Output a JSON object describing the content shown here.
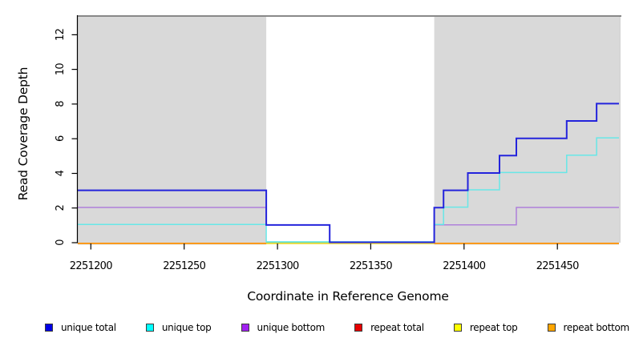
{
  "chart_data": {
    "type": "line",
    "style": "step-coverage-plot",
    "title": "",
    "xlabel": "Coordinate in Reference Genome",
    "ylabel": "Read Coverage Depth",
    "xlim": [
      2251193,
      2251483
    ],
    "ylim": [
      0,
      13.08
    ],
    "grid": false,
    "legend_position": "bottom",
    "x_tick_values": [
      2251200,
      2251250,
      2251300,
      2251350,
      2251400,
      2251450
    ],
    "x_ticks": [
      "2251200",
      "2251250",
      "2251300",
      "2251350",
      "2251400",
      "2251450"
    ],
    "y_tick_values": [
      0,
      2,
      4,
      6,
      8,
      10,
      12
    ],
    "y_ticks": [
      "0",
      "2",
      "4",
      "6",
      "8",
      "10",
      "12"
    ],
    "frame": {
      "top_line_color": "#787878",
      "right_edge_color": "#c4c4c4",
      "background": "#ffffff"
    },
    "shaded_regions": [
      {
        "x0": 2251193,
        "x1": 2251294,
        "color": "#d9d9d9"
      },
      {
        "x0": 2251384,
        "x1": 2251483,
        "color": "#d9d9d9"
      }
    ],
    "series": [
      {
        "name": "repeat total",
        "color": "#dd0000",
        "z": 1,
        "width": 1.3,
        "dy": 0.9,
        "opacity": 1,
        "steps": [
          [
            2251193,
            0
          ],
          [
            2251483,
            0
          ]
        ]
      },
      {
        "name": "repeat bottom",
        "color": "#ff9100",
        "z": 2,
        "width": 1.8,
        "dy": 0.9,
        "opacity": 1,
        "steps": [
          [
            2251193,
            0
          ],
          [
            2251483,
            0
          ]
        ]
      },
      {
        "name": "repeat top",
        "color": "#f2e53c",
        "z": 3,
        "width": 1.6,
        "dy": 0.9,
        "opacity": 1,
        "steps": [
          [
            2251294,
            0
          ],
          [
            2251384,
            0
          ]
        ]
      },
      {
        "name": "unique bottom",
        "color": "#ab79da",
        "z": 5,
        "width": 1.5,
        "dy": -0.7,
        "opacity": 0.92,
        "steps": [
          [
            2251193,
            2
          ],
          [
            2251294,
            1
          ],
          [
            2251328,
            0
          ],
          [
            2251384,
            1
          ],
          [
            2251428,
            2
          ],
          [
            2251483,
            2
          ]
        ]
      },
      {
        "name": "unique top",
        "color": "#58e8e8",
        "z": 6,
        "width": 1.5,
        "dy": -1.1,
        "opacity": 0.88,
        "steps": [
          [
            2251193,
            1
          ],
          [
            2251294,
            0
          ],
          [
            2251384,
            1
          ],
          [
            2251389,
            2
          ],
          [
            2251402,
            3
          ],
          [
            2251419,
            4
          ],
          [
            2251455,
            5
          ],
          [
            2251471,
            6
          ],
          [
            2251483,
            6
          ]
        ]
      },
      {
        "name": "unique total",
        "color": "#2424dc",
        "z": 7,
        "width": 2,
        "dy": -0.5,
        "opacity": 1,
        "steps": [
          [
            2251193,
            3
          ],
          [
            2251294,
            1
          ],
          [
            2251328,
            0
          ],
          [
            2251384,
            2
          ],
          [
            2251389,
            3
          ],
          [
            2251402,
            4
          ],
          [
            2251419,
            5
          ],
          [
            2251428,
            6
          ],
          [
            2251455,
            7
          ],
          [
            2251471,
            8
          ],
          [
            2251483,
            8
          ]
        ]
      }
    ],
    "overlays": [
      {
        "name": "unique-top-over-repeat-top-blend",
        "color": "#85cf80",
        "z": 4,
        "width": 1.3,
        "dy": -0.4,
        "steps": [
          [
            2251294,
            0
          ],
          [
            2251384,
            0
          ]
        ]
      }
    ]
  },
  "legend": {
    "swatch_border": "#3c3c3c",
    "items": [
      {
        "label": "unique total",
        "color": "#0000e6"
      },
      {
        "label": "unique top",
        "color": "#00ffff"
      },
      {
        "label": "unique bottom",
        "color": "#a020f0"
      },
      {
        "label": "repeat total",
        "color": "#e60000"
      },
      {
        "label": "repeat top",
        "color": "#ffff00"
      },
      {
        "label": "repeat bottom",
        "color": "#ffa500"
      }
    ]
  }
}
